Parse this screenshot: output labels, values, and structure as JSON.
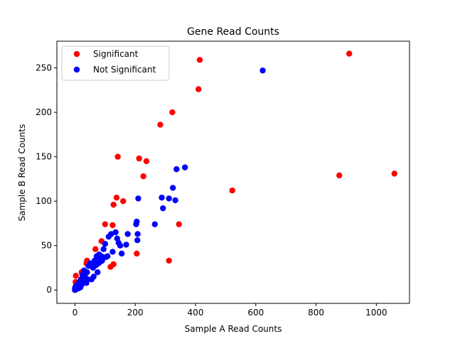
{
  "chart_data": {
    "type": "scatter",
    "title": "Gene Read Counts",
    "xlabel": "Sample A Read Counts",
    "ylabel": "Sample B Read Counts",
    "xlim": [
      -60,
      1110
    ],
    "ylim": [
      -15,
      280
    ],
    "xticks": [
      0,
      200,
      400,
      600,
      800,
      1000
    ],
    "yticks": [
      0,
      50,
      100,
      150,
      200,
      250
    ],
    "grid": false,
    "legend_position": "top-left",
    "series": [
      {
        "name": "Significant",
        "color": "#ff0000",
        "points": [
          [
            2,
            9
          ],
          [
            3,
            16
          ],
          [
            10,
            3
          ],
          [
            22,
            20
          ],
          [
            30,
            17
          ],
          [
            38,
            30
          ],
          [
            40,
            33
          ],
          [
            68,
            46
          ],
          [
            88,
            55
          ],
          [
            100,
            74
          ],
          [
            118,
            26
          ],
          [
            125,
            73
          ],
          [
            128,
            96
          ],
          [
            128,
            29
          ],
          [
            138,
            104
          ],
          [
            142,
            150
          ],
          [
            160,
            100
          ],
          [
            205,
            41
          ],
          [
            213,
            148
          ],
          [
            227,
            128
          ],
          [
            237,
            145
          ],
          [
            283,
            186
          ],
          [
            312,
            33
          ],
          [
            323,
            200
          ],
          [
            345,
            74
          ],
          [
            410,
            226
          ],
          [
            414,
            259
          ],
          [
            522,
            112
          ],
          [
            877,
            129
          ],
          [
            910,
            266
          ],
          [
            1060,
            131
          ]
        ]
      },
      {
        "name": "Not Significant",
        "color": "#0000ff",
        "points": [
          [
            0,
            0
          ],
          [
            0,
            2
          ],
          [
            2,
            4
          ],
          [
            5,
            1
          ],
          [
            8,
            5
          ],
          [
            10,
            7
          ],
          [
            12,
            2
          ],
          [
            15,
            9
          ],
          [
            18,
            3
          ],
          [
            20,
            12
          ],
          [
            22,
            6
          ],
          [
            25,
            17
          ],
          [
            28,
            10
          ],
          [
            30,
            22
          ],
          [
            35,
            14
          ],
          [
            38,
            8
          ],
          [
            40,
            20
          ],
          [
            42,
            12
          ],
          [
            45,
            27
          ],
          [
            50,
            30
          ],
          [
            55,
            12
          ],
          [
            60,
            25
          ],
          [
            62,
            15
          ],
          [
            65,
            33
          ],
          [
            68,
            29
          ],
          [
            70,
            28
          ],
          [
            72,
            38
          ],
          [
            75,
            20
          ],
          [
            78,
            30
          ],
          [
            80,
            40
          ],
          [
            82,
            36
          ],
          [
            85,
            32
          ],
          [
            88,
            38
          ],
          [
            90,
            33
          ],
          [
            95,
            46
          ],
          [
            100,
            52
          ],
          [
            102,
            37
          ],
          [
            108,
            38
          ],
          [
            112,
            60
          ],
          [
            120,
            63
          ],
          [
            125,
            43
          ],
          [
            135,
            65
          ],
          [
            140,
            58
          ],
          [
            145,
            53
          ],
          [
            150,
            50
          ],
          [
            155,
            41
          ],
          [
            170,
            51
          ],
          [
            175,
            63
          ],
          [
            203,
            74
          ],
          [
            205,
            77
          ],
          [
            207,
            56
          ],
          [
            208,
            63
          ],
          [
            210,
            103
          ],
          [
            265,
            74
          ],
          [
            288,
            104
          ],
          [
            292,
            92
          ],
          [
            312,
            103
          ],
          [
            325,
            115
          ],
          [
            333,
            101
          ],
          [
            337,
            136
          ],
          [
            365,
            138
          ],
          [
            623,
            247
          ]
        ]
      }
    ]
  }
}
